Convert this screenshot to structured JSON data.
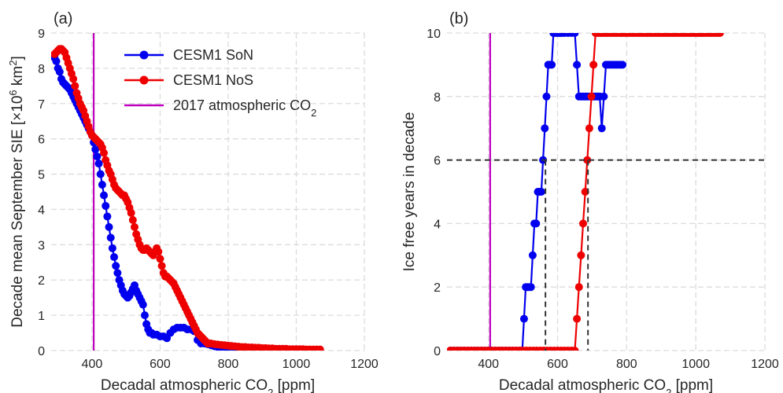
{
  "chart_data": [
    {
      "type": "line",
      "panel_label": "(a)",
      "xlabel": "Decadal atmospheric CO",
      "xlabel_sub": "2",
      "xlabel_unit": " [ppm]",
      "ylabel": "Decade mean September SIE [×10",
      "ylabel_sup": "6",
      "ylabel_mid": " km",
      "ylabel_sup2": "2",
      "ylabel_end": "]",
      "xlim": [
        280,
        1200
      ],
      "ylim": [
        0,
        9
      ],
      "xticks": [
        400,
        600,
        800,
        1000,
        1200
      ],
      "yticks": [
        0,
        1,
        2,
        3,
        4,
        5,
        6,
        7,
        8,
        9
      ],
      "grid": true,
      "legend_position": "upper-right",
      "reference_vline": {
        "name": "2017 atmospheric CO",
        "name_sub": "2",
        "x": 405,
        "color": "#bf00bf"
      },
      "series": [
        {
          "name": "CESM1 SoN",
          "color": "#0000ee",
          "x": [
            290,
            295,
            300,
            305,
            310,
            315,
            320,
            325,
            330,
            335,
            340,
            345,
            350,
            355,
            360,
            365,
            370,
            375,
            380,
            385,
            390,
            395,
            400,
            405,
            410,
            415,
            420,
            425,
            430,
            435,
            440,
            445,
            450,
            455,
            460,
            465,
            470,
            475,
            480,
            485,
            490,
            495,
            500,
            505,
            510,
            515,
            520,
            525,
            530,
            535,
            540,
            545,
            550,
            555,
            560,
            565,
            570,
            575,
            580,
            590,
            600,
            610,
            620,
            630,
            640,
            650,
            660,
            670,
            680,
            690,
            700,
            710,
            720,
            730,
            740,
            750,
            760,
            770,
            780,
            790,
            800,
            810,
            820,
            830,
            840,
            850
          ],
          "values": [
            8.3,
            8.2,
            8.0,
            7.9,
            7.7,
            7.6,
            7.55,
            7.5,
            7.45,
            7.4,
            7.3,
            7.2,
            7.1,
            7.0,
            6.9,
            6.8,
            6.7,
            6.6,
            6.5,
            6.4,
            6.3,
            6.2,
            6.1,
            5.9,
            5.7,
            5.5,
            5.3,
            5.0,
            4.7,
            4.4,
            4.1,
            3.8,
            3.5,
            3.2,
            2.9,
            2.65,
            2.4,
            2.2,
            2.0,
            1.85,
            1.7,
            1.6,
            1.55,
            1.5,
            1.55,
            1.65,
            1.75,
            1.85,
            1.7,
            1.6,
            1.5,
            1.4,
            1.3,
            1.0,
            0.75,
            0.6,
            0.5,
            0.5,
            0.45,
            0.45,
            0.4,
            0.4,
            0.35,
            0.5,
            0.6,
            0.65,
            0.65,
            0.65,
            0.6,
            0.6,
            0.55,
            0.3,
            0.2,
            0.2,
            0.18,
            0.15,
            0.12,
            0.1,
            0.1,
            0.08,
            0.07,
            0.06,
            0.05,
            0.04,
            0.03,
            0.02
          ]
        },
        {
          "name": "CESM1 NoS",
          "color": "#ee0000",
          "x": [
            290,
            295,
            300,
            305,
            310,
            315,
            320,
            325,
            330,
            335,
            340,
            345,
            350,
            355,
            360,
            365,
            370,
            375,
            380,
            385,
            390,
            395,
            400,
            405,
            410,
            415,
            420,
            425,
            430,
            435,
            440,
            445,
            450,
            455,
            460,
            465,
            470,
            475,
            480,
            485,
            490,
            495,
            500,
            505,
            510,
            515,
            520,
            525,
            530,
            535,
            540,
            545,
            550,
            555,
            560,
            565,
            570,
            575,
            580,
            585,
            590,
            595,
            600,
            605,
            610,
            615,
            620,
            625,
            630,
            635,
            640,
            645,
            650,
            655,
            660,
            665,
            670,
            675,
            680,
            685,
            690,
            695,
            700,
            705,
            710,
            715,
            720,
            725,
            730,
            735,
            740,
            745,
            750,
            760,
            770,
            780,
            790,
            800,
            810,
            820,
            830,
            840,
            850,
            860,
            870,
            880,
            890,
            900,
            910,
            920,
            930,
            940,
            950,
            960,
            970,
            980,
            990,
            1000,
            1010,
            1020,
            1030,
            1040,
            1050,
            1060,
            1070
          ],
          "values": [
            8.4,
            8.45,
            8.5,
            8.55,
            8.55,
            8.5,
            8.45,
            8.3,
            8.15,
            8.0,
            7.85,
            7.7,
            7.5,
            7.3,
            7.15,
            7.0,
            6.9,
            6.8,
            6.65,
            6.5,
            6.35,
            6.2,
            6.1,
            6.05,
            6.0,
            5.95,
            5.9,
            5.85,
            5.75,
            5.6,
            5.4,
            5.25,
            5.1,
            5.0,
            4.85,
            4.7,
            4.6,
            4.55,
            4.5,
            4.45,
            4.4,
            4.4,
            4.3,
            4.2,
            4.05,
            3.9,
            3.7,
            3.5,
            3.3,
            3.15,
            3.0,
            2.9,
            2.85,
            2.85,
            2.9,
            2.85,
            2.8,
            2.75,
            2.7,
            2.8,
            2.9,
            2.8,
            2.6,
            2.4,
            2.2,
            2.1,
            2.1,
            2.05,
            2.0,
            1.95,
            1.9,
            1.8,
            1.7,
            1.6,
            1.5,
            1.4,
            1.3,
            1.2,
            1.1,
            1.0,
            0.9,
            0.8,
            0.7,
            0.6,
            0.5,
            0.45,
            0.4,
            0.35,
            0.3,
            0.25,
            0.2,
            0.2,
            0.2,
            0.18,
            0.17,
            0.16,
            0.15,
            0.14,
            0.13,
            0.12,
            0.11,
            0.1,
            0.1,
            0.09,
            0.09,
            0.08,
            0.08,
            0.07,
            0.07,
            0.06,
            0.06,
            0.05,
            0.05,
            0.05,
            0.05,
            0.04,
            0.04,
            0.04,
            0.04,
            0.04,
            0.03,
            0.03,
            0.03,
            0.03,
            0.03
          ]
        }
      ]
    },
    {
      "type": "line",
      "panel_label": "(b)",
      "xlabel": "Decadal atmospheric CO",
      "xlabel_sub": "2",
      "xlabel_unit": " [ppm]",
      "ylabel": "Ice free years in decade",
      "xlim": [
        280,
        1200
      ],
      "ylim": [
        0,
        10
      ],
      "xticks": [
        400,
        600,
        800,
        1000,
        1200
      ],
      "yticks": [
        0,
        2,
        4,
        6,
        8,
        10
      ],
      "grid": true,
      "reference_vline": {
        "x": 405,
        "color": "#bf00bf"
      },
      "threshold_hline": {
        "y": 6,
        "color": "#333333"
      },
      "threshold_vlines": [
        {
          "x": 565,
          "color": "#333333"
        },
        {
          "x": 688,
          "color": "#333333"
        }
      ],
      "series": [
        {
          "name": "CESM1 SoN",
          "color": "#0000ee",
          "x": [
            290,
            300,
            310,
            320,
            330,
            340,
            350,
            360,
            370,
            380,
            390,
            400,
            410,
            420,
            430,
            440,
            450,
            460,
            470,
            480,
            490,
            498,
            503,
            508,
            513,
            518,
            523,
            528,
            533,
            538,
            543,
            548,
            553,
            558,
            563,
            568,
            573,
            578,
            583,
            588,
            593,
            598,
            603,
            608,
            613,
            620,
            630,
            640,
            650,
            656,
            662,
            668,
            674,
            680,
            686,
            692,
            698,
            704,
            710,
            716,
            722,
            728,
            734,
            740,
            746,
            752,
            758,
            764,
            770,
            776,
            782,
            788
          ],
          "values": [
            0,
            0,
            0,
            0,
            0,
            0,
            0,
            0,
            0,
            0,
            0,
            0,
            0,
            0,
            0,
            0,
            0,
            0,
            0,
            0,
            0,
            0,
            1,
            2,
            2,
            2,
            2,
            3,
            4,
            4,
            5,
            5,
            5,
            6,
            7,
            8,
            9,
            9,
            9,
            10,
            10,
            10,
            10,
            10,
            10,
            10,
            10,
            10,
            10,
            9,
            8,
            8,
            8,
            8,
            8,
            8,
            8,
            8,
            8,
            8,
            8,
            7,
            8,
            9,
            9,
            9,
            9,
            9,
            9,
            9,
            9,
            9
          ]
        },
        {
          "name": "CESM1 NoS",
          "color": "#ee0000",
          "x": [
            290,
            300,
            310,
            320,
            330,
            340,
            350,
            360,
            370,
            380,
            390,
            400,
            410,
            420,
            430,
            440,
            450,
            460,
            470,
            480,
            490,
            500,
            510,
            520,
            530,
            540,
            550,
            560,
            570,
            580,
            590,
            600,
            610,
            620,
            630,
            640,
            650,
            656,
            662,
            668,
            674,
            680,
            686,
            692,
            698,
            704,
            710,
            716,
            722,
            728,
            734,
            740,
            746,
            752,
            758,
            764,
            770,
            776,
            782,
            788,
            794,
            800,
            806,
            812,
            818,
            824,
            830,
            836,
            842,
            848,
            854,
            860,
            866,
            872,
            878,
            884,
            890,
            896,
            902,
            908,
            914,
            920,
            926,
            932,
            938,
            944,
            950,
            956,
            962,
            968,
            974,
            980,
            986,
            992,
            998,
            1004,
            1010,
            1016,
            1022,
            1028,
            1034,
            1040,
            1046,
            1052,
            1058,
            1064,
            1070
          ],
          "values": [
            0,
            0,
            0,
            0,
            0,
            0,
            0,
            0,
            0,
            0,
            0,
            0,
            0,
            0,
            0,
            0,
            0,
            0,
            0,
            0,
            0,
            0,
            0,
            0,
            0,
            0,
            0,
            0,
            0,
            0,
            0,
            0,
            0,
            0,
            0,
            0,
            0,
            1,
            2,
            3,
            4,
            5,
            6,
            7,
            8,
            9,
            10,
            10,
            10,
            10,
            10,
            10,
            10,
            10,
            10,
            10,
            10,
            10,
            10,
            10,
            10,
            10,
            10,
            10,
            10,
            10,
            10,
            10,
            10,
            10,
            10,
            10,
            10,
            10,
            10,
            10,
            10,
            10,
            10,
            10,
            10,
            10,
            10,
            10,
            10,
            10,
            10,
            10,
            10,
            10,
            10,
            10,
            10,
            10,
            10,
            10,
            10,
            10,
            10,
            10,
            10,
            10,
            10,
            10,
            10,
            10,
            10
          ]
        }
      ]
    }
  ]
}
